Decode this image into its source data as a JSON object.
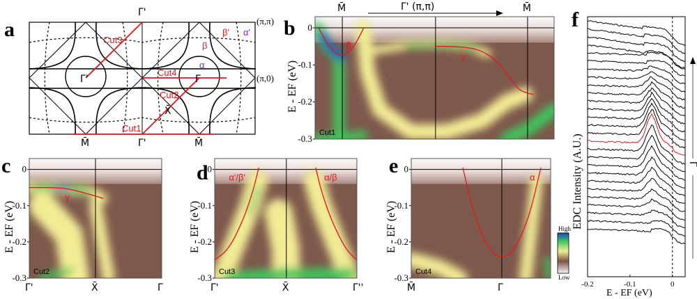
{
  "panel_letters": {
    "a": "a",
    "b": "b",
    "c": "c",
    "d": "d",
    "e": "e",
    "f": "f"
  },
  "colors": {
    "cut_lines": "#e8141c",
    "band_fit": "#e8141c",
    "alpha": "#7a2bd6",
    "highlighted_edc": "#e8141c"
  },
  "panel_a": {
    "labels": {
      "gamma_top": "Γ̄'",
      "pi_pi": "(π,π)",
      "pi_0": "(π,0)",
      "m_left": "M̄",
      "gamma_bottom": "Γ̄'",
      "m_right": "M̄",
      "gamma_prime_center": "Γ̄'",
      "gamma_center": "Γ̄",
      "x_point": "X̄",
      "cut1": "Cut1",
      "cut2": "Cut2",
      "cut3": "Cut3",
      "cut4": "Cut4",
      "beta_prime": "β'",
      "alpha_prime": "α'",
      "beta": "β",
      "alpha": "α"
    }
  },
  "colorbar": {
    "high": "High",
    "low": "Low",
    "colormap": [
      "#f6f2f2",
      "#7b5548",
      "#f2ec94",
      "#3cc65c",
      "#1545c8"
    ]
  },
  "chart_data": [
    {
      "id": "b",
      "type": "heatmap",
      "ylabel": "E - EF (eV)",
      "ylabel_sub": "F",
      "ylim": [
        0.03,
        -0.3
      ],
      "yticks": [
        "0",
        "-0.1",
        "-0.2",
        "-0.3"
      ],
      "ytick_values": [
        0,
        -0.1,
        -0.2,
        -0.3
      ],
      "kpoints": [
        {
          "label": "M̄",
          "pos": 0.114
        },
        {
          "label": "Γ̄' (π,π)",
          "pos": 0.504
        },
        {
          "label": "M̄",
          "pos": 0.889
        }
      ],
      "arrow_label": "Γ̄' (π,π)",
      "cut": "Cut1",
      "bands": [
        {
          "name": "β",
          "k": [
            0.015,
            0.06,
            0.114,
            0.16,
            0.204
          ],
          "E": [
            0.0,
            -0.055,
            -0.08,
            -0.055,
            0.0
          ]
        },
        {
          "name": "γ",
          "k": [
            0.504,
            0.58,
            0.665,
            0.72,
            0.77,
            0.82,
            0.855,
            0.913
          ],
          "E": [
            -0.05,
            -0.05,
            -0.055,
            -0.07,
            -0.095,
            -0.14,
            -0.17,
            -0.18
          ]
        }
      ]
    },
    {
      "id": "c",
      "type": "heatmap",
      "ylabel": "E - EF (eV)",
      "ylim": [
        0.03,
        -0.3
      ],
      "yticks": [
        "0",
        "-0.1",
        "-0.2",
        "-0.3"
      ],
      "ytick_values": [
        0,
        -0.1,
        -0.2,
        -0.3
      ],
      "kpoints": [
        {
          "label": "Γ̄'",
          "pos": 0.0
        },
        {
          "label": "X̄",
          "pos": 0.5
        },
        {
          "label": "Γ̄",
          "pos": 1.0
        }
      ],
      "cut": "Cut2",
      "bands": [
        {
          "name": "γ",
          "k": [
            0.0,
            0.15,
            0.28,
            0.42,
            0.56
          ],
          "E": [
            -0.05,
            -0.05,
            -0.052,
            -0.065,
            -0.08
          ]
        }
      ]
    },
    {
      "id": "d",
      "type": "heatmap",
      "ylabel": "E - EF (eV)",
      "ylim": [
        0.03,
        -0.3
      ],
      "yticks": [
        "0",
        "-0.1",
        "-0.2",
        "-0.3"
      ],
      "ytick_values": [
        0,
        -0.1,
        -0.2,
        -0.3
      ],
      "kpoints": [
        {
          "label": "Γ̄'",
          "pos": 0.0
        },
        {
          "label": "X̄",
          "pos": 0.504
        },
        {
          "label": "Γ̄''",
          "pos": 1.0
        }
      ],
      "cut": "Cut3",
      "bands": [
        {
          "name": "α'/β'",
          "k": [
            0.0,
            0.1,
            0.2,
            0.27,
            0.31
          ],
          "E": [
            -0.25,
            -0.22,
            -0.14,
            -0.06,
            0.005
          ]
        },
        {
          "name": "α/β",
          "k": [
            0.71,
            0.75,
            0.82,
            0.92,
            1.0
          ],
          "E": [
            0.005,
            -0.06,
            -0.14,
            -0.22,
            -0.25
          ]
        }
      ]
    },
    {
      "id": "e",
      "type": "heatmap",
      "ylabel": "E - EF (eV)",
      "ylim": [
        0.03,
        -0.3
      ],
      "yticks": [
        "0",
        "-0.1",
        "-0.2",
        "-0.3"
      ],
      "ytick_values": [
        0,
        -0.1,
        -0.2,
        -0.3
      ],
      "kpoints": [
        {
          "label": "M̄",
          "pos": 0.0
        },
        {
          "label": "Γ̄",
          "pos": 0.65
        }
      ],
      "cut": "Cut4",
      "bands": [
        {
          "name": "α",
          "k": [
            0.37,
            0.44,
            0.51,
            0.58,
            0.65,
            0.72,
            0.79,
            0.86,
            0.93
          ],
          "E": [
            0.005,
            -0.11,
            -0.185,
            -0.23,
            -0.245,
            -0.23,
            -0.185,
            -0.11,
            0.005
          ]
        }
      ]
    },
    {
      "id": "f",
      "type": "line",
      "ylabel": "EDC Intensity (A.U.)",
      "xlabel": "E - EF (eV)",
      "xlim": [
        -0.2,
        0.03
      ],
      "xticks": [
        "-0.2",
        "-0.1",
        "0"
      ],
      "xtick_values": [
        -0.2,
        -0.1,
        0
      ],
      "curve_count": 27,
      "highlighted_curve": 15,
      "peak_energy": -0.05,
      "arrow_label": "Γ̄"
    }
  ]
}
